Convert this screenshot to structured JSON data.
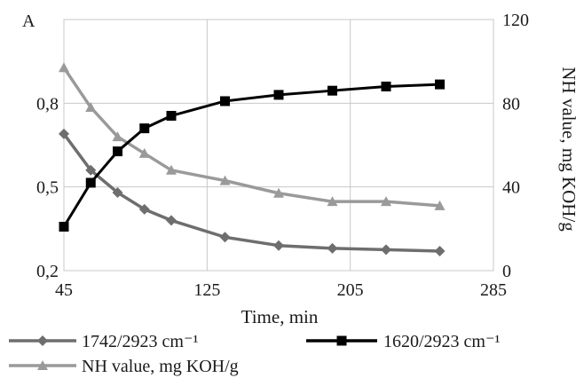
{
  "chart_data": {
    "type": "line",
    "panel_label": "A",
    "xlabel": "Time, min",
    "ylabel_right": "NH value, mg KOH/g",
    "x_ticks": [
      "45",
      "125",
      "205",
      "285"
    ],
    "y_left_ticks": [
      "0,2",
      "0,5",
      "0,8"
    ],
    "y_right_ticks": [
      "0",
      "40",
      "80",
      "120"
    ],
    "xlim": [
      45,
      285
    ],
    "ylim_left": [
      0.2,
      1.1
    ],
    "ylim_right": [
      0,
      120
    ],
    "grid": true,
    "legend_position": "bottom",
    "series": [
      {
        "name": "1742/2923 cm⁻¹",
        "axis": "left",
        "color": "#6e6e6e",
        "marker": "diamond",
        "x": [
          45,
          60,
          75,
          90,
          105,
          135,
          165,
          195,
          225,
          255
        ],
        "y": [
          0.69,
          0.56,
          0.48,
          0.42,
          0.38,
          0.32,
          0.29,
          0.28,
          0.275,
          0.27
        ]
      },
      {
        "name": "1620/2923 cm⁻¹",
        "axis": "right",
        "color": "#000000",
        "marker": "square",
        "x": [
          45,
          60,
          75,
          90,
          105,
          135,
          165,
          195,
          225,
          255
        ],
        "y": [
          21,
          42,
          57,
          68,
          74,
          81,
          84,
          86,
          88,
          89
        ]
      },
      {
        "name": "NH value, mg KOH/g",
        "axis": "right",
        "color": "#9a9a9a",
        "marker": "triangle",
        "x": [
          45,
          60,
          75,
          90,
          105,
          135,
          165,
          195,
          225,
          255
        ],
        "y": [
          97,
          78,
          64,
          56,
          48,
          43,
          37,
          33,
          33,
          31
        ]
      }
    ]
  }
}
